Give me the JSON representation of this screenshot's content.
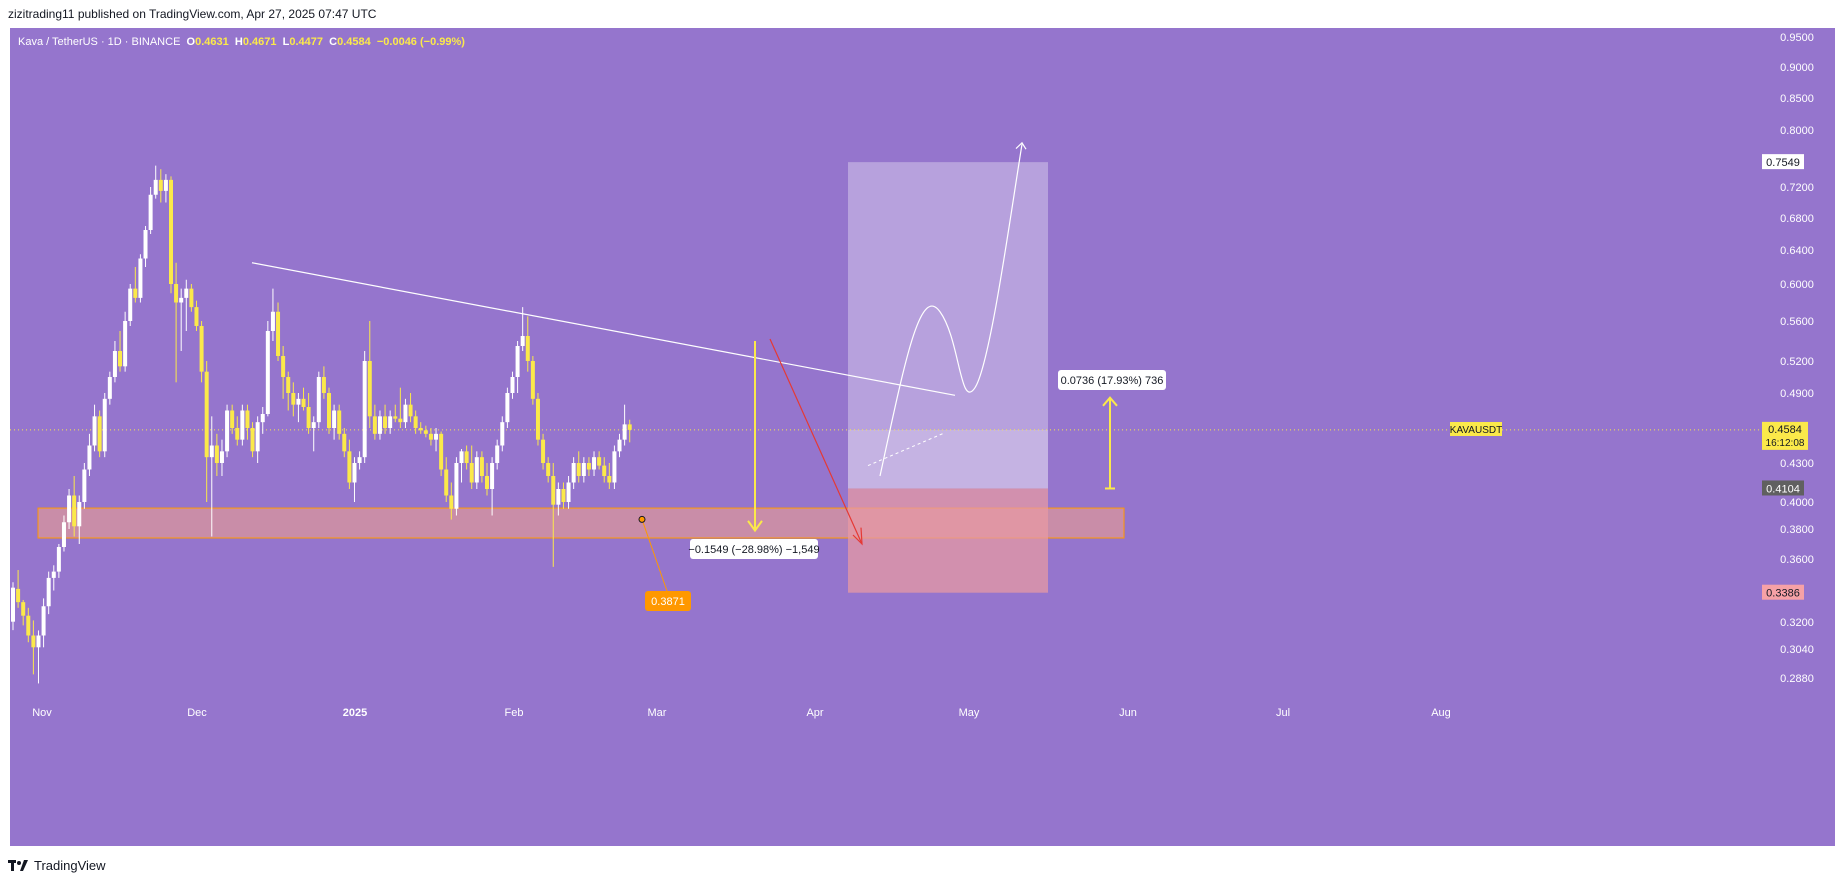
{
  "header": {
    "text": "zizitrading11 published on TradingView.com, Apr 27, 2025 07:47 UTC"
  },
  "legend": {
    "symbol": "Kava / TetherUS · 1D · BINANCE",
    "o_label": "O",
    "o_value": "0.4631",
    "h_label": "H",
    "h_value": "0.4671",
    "l_label": "L",
    "l_value": "0.4477",
    "c_label": "C",
    "c_value": "0.4584",
    "change": "−0.0046 (−0.99%)"
  },
  "footer": {
    "brand": "TradingView"
  },
  "colors": {
    "background": "#9575cd",
    "candle_up": "#ffffff",
    "candle_down": "#fbe94a",
    "support_zone": "#f4a08a",
    "target_box": "#c5b3e6",
    "stop_box": "#e79aa3",
    "orange_label": "#ff9800",
    "trend_line": "#ffffff",
    "projection_arrow": "#e53935"
  },
  "chart_data": {
    "type": "candlestick",
    "symbol": "KAVAUSDT",
    "ylim": [
      0.28,
      0.97
    ],
    "y_ticks": [
      "0.9500",
      "0.9000",
      "0.8500",
      "0.8000",
      "0.7200",
      "0.6800",
      "0.6400",
      "0.6000",
      "0.5600",
      "0.5200",
      "0.4900",
      "0.4300",
      "0.4000",
      "0.3800",
      "0.3600",
      "0.3200",
      "0.3040",
      "0.2880"
    ],
    "x_ticks": [
      "Nov",
      "Dec",
      "2025",
      "Feb",
      "Mar",
      "Apr",
      "May",
      "Jun",
      "Jul",
      "Aug"
    ],
    "last_price": {
      "label": "KAVAUSDT",
      "value": "0.4584",
      "countdown": "16:12:08"
    },
    "price_tags": [
      {
        "value": "0.7549",
        "kind": "target"
      },
      {
        "value": "0.4104",
        "kind": "entry"
      },
      {
        "value": "0.3386",
        "kind": "stop"
      }
    ],
    "annotations": {
      "support_low": "0.3871",
      "drop_measure": "−0.1549 (−28.98%) −1,549",
      "gain_measure": "0.0736 (17.93%) 736"
    },
    "support_zone": [
      0.374,
      0.3955
    ],
    "trendline": [
      [
        0.625,
        "Dec"
      ],
      [
        0.488,
        "Apr"
      ]
    ],
    "position": {
      "target": 0.7549,
      "entry": 0.4584,
      "stop_entry": 0.4104,
      "stop": 0.3386
    },
    "candles": [
      [
        0.3202,
        0.3452,
        0.3152,
        0.3418
      ],
      [
        0.341,
        0.353,
        0.329,
        0.3326
      ],
      [
        0.3326,
        0.334,
        0.318,
        0.324
      ],
      [
        0.324,
        0.329,
        0.308,
        0.312
      ],
      [
        0.312,
        0.321,
        0.29,
        0.305
      ],
      [
        0.305,
        0.315,
        0.285,
        0.312
      ],
      [
        0.312,
        0.335,
        0.305,
        0.33
      ],
      [
        0.33,
        0.352,
        0.325,
        0.348
      ],
      [
        0.348,
        0.356,
        0.34,
        0.352
      ],
      [
        0.352,
        0.37,
        0.348,
        0.368
      ],
      [
        0.368,
        0.39,
        0.365,
        0.385
      ],
      [
        0.385,
        0.41,
        0.38,
        0.405
      ],
      [
        0.405,
        0.42,
        0.375,
        0.382
      ],
      [
        0.382,
        0.405,
        0.37,
        0.4
      ],
      [
        0.4,
        0.43,
        0.395,
        0.425
      ],
      [
        0.425,
        0.455,
        0.42,
        0.445
      ],
      [
        0.445,
        0.48,
        0.44,
        0.47
      ],
      [
        0.47,
        0.475,
        0.435,
        0.44
      ],
      [
        0.44,
        0.49,
        0.435,
        0.485
      ],
      [
        0.485,
        0.51,
        0.48,
        0.505
      ],
      [
        0.505,
        0.54,
        0.5,
        0.53
      ],
      [
        0.53,
        0.55,
        0.51,
        0.515
      ],
      [
        0.515,
        0.57,
        0.51,
        0.56
      ],
      [
        0.56,
        0.6,
        0.555,
        0.595
      ],
      [
        0.595,
        0.62,
        0.58,
        0.585
      ],
      [
        0.585,
        0.635,
        0.58,
        0.63
      ],
      [
        0.63,
        0.67,
        0.62,
        0.665
      ],
      [
        0.665,
        0.72,
        0.66,
        0.71
      ],
      [
        0.71,
        0.75,
        0.705,
        0.73
      ],
      [
        0.73,
        0.745,
        0.7,
        0.715
      ],
      [
        0.715,
        0.738,
        0.7,
        0.73
      ],
      [
        0.73,
        0.735,
        0.59,
        0.6
      ],
      [
        0.6,
        0.625,
        0.5,
        0.58
      ],
      [
        0.58,
        0.595,
        0.53,
        0.585
      ],
      [
        0.585,
        0.605,
        0.55,
        0.595
      ],
      [
        0.595,
        0.6,
        0.57,
        0.575
      ],
      [
        0.575,
        0.582,
        0.55,
        0.555
      ],
      [
        0.555,
        0.56,
        0.5,
        0.51
      ],
      [
        0.51,
        0.52,
        0.4,
        0.435
      ],
      [
        0.435,
        0.47,
        0.375,
        0.445
      ],
      [
        0.445,
        0.455,
        0.42,
        0.43
      ],
      [
        0.43,
        0.45,
        0.42,
        0.44
      ],
      [
        0.44,
        0.48,
        0.435,
        0.475
      ],
      [
        0.475,
        0.48,
        0.455,
        0.46
      ],
      [
        0.46,
        0.47,
        0.445,
        0.45
      ],
      [
        0.45,
        0.48,
        0.445,
        0.475
      ],
      [
        0.475,
        0.48,
        0.45,
        0.46
      ],
      [
        0.46,
        0.465,
        0.435,
        0.44
      ],
      [
        0.44,
        0.47,
        0.43,
        0.465
      ],
      [
        0.465,
        0.478,
        0.455,
        0.472
      ],
      [
        0.472,
        0.56,
        0.47,
        0.55
      ],
      [
        0.55,
        0.595,
        0.54,
        0.57
      ],
      [
        0.57,
        0.58,
        0.52,
        0.525
      ],
      [
        0.525,
        0.535,
        0.485,
        0.505
      ],
      [
        0.505,
        0.51,
        0.475,
        0.49
      ],
      [
        0.49,
        0.5,
        0.47,
        0.48
      ],
      [
        0.48,
        0.49,
        0.465,
        0.485
      ],
      [
        0.485,
        0.495,
        0.475,
        0.478
      ],
      [
        0.478,
        0.49,
        0.455,
        0.46
      ],
      [
        0.46,
        0.47,
        0.44,
        0.465
      ],
      [
        0.465,
        0.51,
        0.46,
        0.505
      ],
      [
        0.505,
        0.515,
        0.485,
        0.49
      ],
      [
        0.49,
        0.495,
        0.455,
        0.46
      ],
      [
        0.46,
        0.48,
        0.45,
        0.475
      ],
      [
        0.475,
        0.48,
        0.45,
        0.455
      ],
      [
        0.455,
        0.46,
        0.435,
        0.44
      ],
      [
        0.44,
        0.45,
        0.41,
        0.415
      ],
      [
        0.415,
        0.435,
        0.4,
        0.43
      ],
      [
        0.43,
        0.44,
        0.425,
        0.435
      ],
      [
        0.435,
        0.53,
        0.43,
        0.52
      ],
      [
        0.52,
        0.56,
        0.46,
        0.47
      ],
      [
        0.47,
        0.48,
        0.45,
        0.455
      ],
      [
        0.455,
        0.475,
        0.45,
        0.47
      ],
      [
        0.47,
        0.48,
        0.455,
        0.46
      ],
      [
        0.46,
        0.475,
        0.455,
        0.47
      ],
      [
        0.47,
        0.48,
        0.465,
        0.468
      ],
      [
        0.468,
        0.495,
        0.46,
        0.465
      ],
      [
        0.465,
        0.485,
        0.46,
        0.48
      ],
      [
        0.48,
        0.49,
        0.465,
        0.47
      ],
      [
        0.47,
        0.475,
        0.455,
        0.46
      ],
      [
        0.46,
        0.465,
        0.455,
        0.458
      ],
      [
        0.458,
        0.462,
        0.452,
        0.455
      ],
      [
        0.455,
        0.46,
        0.445,
        0.45
      ],
      [
        0.45,
        0.46,
        0.44,
        0.455
      ],
      [
        0.455,
        0.457,
        0.42,
        0.425
      ],
      [
        0.425,
        0.435,
        0.4,
        0.405
      ],
      [
        0.405,
        0.415,
        0.387,
        0.395
      ],
      [
        0.395,
        0.435,
        0.39,
        0.43
      ],
      [
        0.43,
        0.442,
        0.415,
        0.44
      ],
      [
        0.44,
        0.445,
        0.425,
        0.43
      ],
      [
        0.43,
        0.445,
        0.41,
        0.415
      ],
      [
        0.415,
        0.44,
        0.41,
        0.435
      ],
      [
        0.435,
        0.44,
        0.415,
        0.42
      ],
      [
        0.42,
        0.43,
        0.405,
        0.41
      ],
      [
        0.41,
        0.435,
        0.39,
        0.43
      ],
      [
        0.43,
        0.45,
        0.425,
        0.445
      ],
      [
        0.445,
        0.47,
        0.44,
        0.465
      ],
      [
        0.465,
        0.495,
        0.46,
        0.49
      ],
      [
        0.49,
        0.51,
        0.485,
        0.505
      ],
      [
        0.505,
        0.54,
        0.49,
        0.535
      ],
      [
        0.535,
        0.575,
        0.53,
        0.545
      ],
      [
        0.545,
        0.565,
        0.51,
        0.52
      ],
      [
        0.52,
        0.525,
        0.48,
        0.485
      ],
      [
        0.485,
        0.49,
        0.445,
        0.45
      ],
      [
        0.45,
        0.455,
        0.425,
        0.43
      ],
      [
        0.43,
        0.435,
        0.415,
        0.42
      ],
      [
        0.42,
        0.43,
        0.355,
        0.398
      ],
      [
        0.398,
        0.415,
        0.39,
        0.41
      ],
      [
        0.41,
        0.415,
        0.395,
        0.4
      ],
      [
        0.4,
        0.42,
        0.395,
        0.415
      ],
      [
        0.415,
        0.435,
        0.41,
        0.43
      ],
      [
        0.43,
        0.44,
        0.415,
        0.42
      ],
      [
        0.42,
        0.435,
        0.415,
        0.43
      ],
      [
        0.43,
        0.435,
        0.42,
        0.425
      ],
      [
        0.425,
        0.44,
        0.42,
        0.435
      ],
      [
        0.435,
        0.44,
        0.425,
        0.428
      ],
      [
        0.428,
        0.435,
        0.415,
        0.42
      ],
      [
        0.42,
        0.43,
        0.41,
        0.415
      ],
      [
        0.415,
        0.445,
        0.41,
        0.44
      ],
      [
        0.44,
        0.455,
        0.435,
        0.45
      ],
      [
        0.45,
        0.48,
        0.445,
        0.4631
      ],
      [
        0.4631,
        0.4671,
        0.4477,
        0.4584
      ]
    ]
  }
}
